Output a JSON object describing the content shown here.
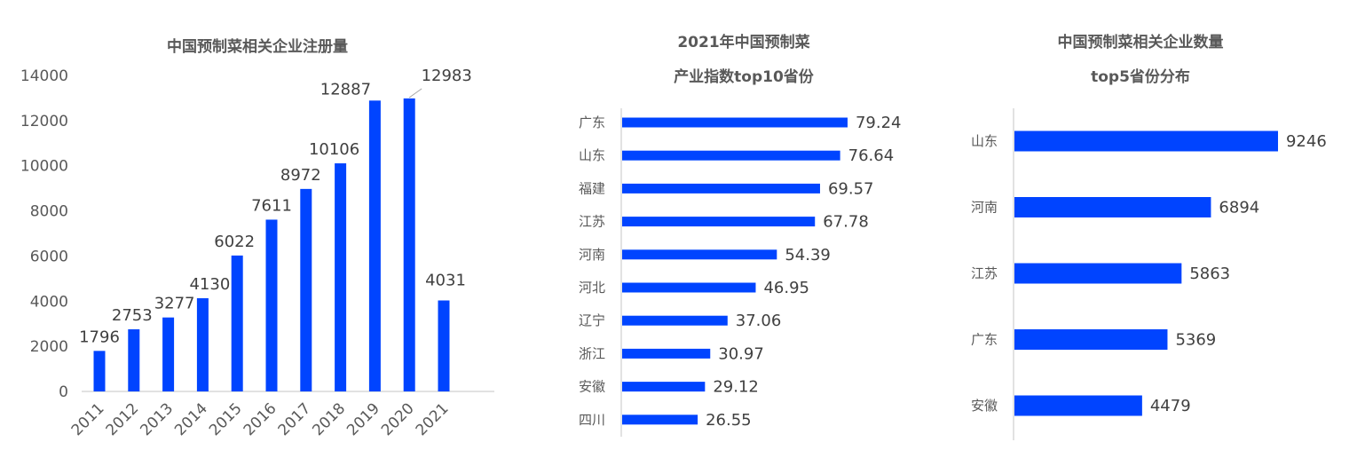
{
  "bar_color": "#0044FF",
  "axis_color": "#D9D9D9",
  "chart_data": [
    {
      "type": "bar",
      "orientation": "vertical",
      "title": "中国预制菜相关企业注册量",
      "categories": [
        "2011",
        "2012",
        "2013",
        "2014",
        "2015",
        "2016",
        "2017",
        "2018",
        "2019",
        "2020",
        "2021"
      ],
      "values": [
        1796,
        2753,
        3277,
        4130,
        6022,
        7611,
        8972,
        10106,
        12887,
        12983,
        4031
      ],
      "ylim": [
        0,
        14000
      ],
      "yticks": [
        0,
        2000,
        4000,
        6000,
        8000,
        10000,
        12000,
        14000
      ],
      "grid": false,
      "data_labels": true
    },
    {
      "type": "bar",
      "orientation": "horizontal",
      "title_lines": [
        "2021年中国预制菜",
        "产业指数top10省份"
      ],
      "categories": [
        "广东",
        "山东",
        "福建",
        "江苏",
        "河南",
        "河北",
        "辽宁",
        "浙江",
        "安徽",
        "四川"
      ],
      "values": [
        79.24,
        76.64,
        69.57,
        67.78,
        54.39,
        46.95,
        37.06,
        30.97,
        29.12,
        26.55
      ],
      "grid": false,
      "data_labels": true
    },
    {
      "type": "bar",
      "orientation": "horizontal",
      "title_lines": [
        "中国预制菜相关企业数量",
        "top5省份分布"
      ],
      "categories": [
        "山东",
        "河南",
        "江苏",
        "广东",
        "安徽"
      ],
      "values": [
        9246,
        6894,
        5863,
        5369,
        4479
      ],
      "grid": false,
      "data_labels": true
    }
  ]
}
